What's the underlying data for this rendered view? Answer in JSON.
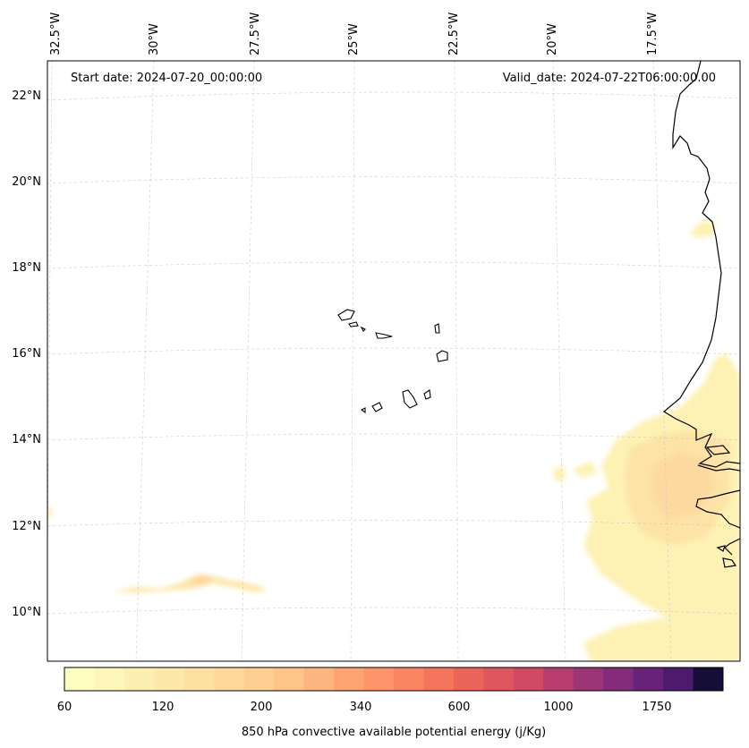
{
  "header": {
    "start_date": "Start date: 2024-07-20_00:00:00",
    "valid_date": "Valid_date: 2024-07-22T06:00:00.00"
  },
  "map": {
    "longitude_labels": [
      "32.5°W",
      "30°W",
      "27.5°W",
      "25°W",
      "22.5°W",
      "20°W",
      "17.5°W"
    ],
    "latitude_labels": [
      "22°N",
      "20°N",
      "18°N",
      "16°N",
      "14°N",
      "12°N",
      "10°N"
    ],
    "gridlines": true,
    "coastline_color": "#000000",
    "features": [
      "cape-verde-islands",
      "west-african-coastline"
    ]
  },
  "colorbar": {
    "label": "850 hPa convective available potential energy (j/Kg)",
    "tick_labels": [
      "60",
      "120",
      "200",
      "340",
      "600",
      "1000",
      "1750"
    ],
    "colors": [
      "#fcfdbf",
      "#fcf6b8",
      "#fcefb1",
      "#fde8aa",
      "#fde0a2",
      "#fed899",
      "#fecf91",
      "#fec488",
      "#feb47e",
      "#fea473",
      "#fe946a",
      "#fb8462",
      "#f5755c",
      "#ec6459",
      "#e0565e",
      "#d14a65",
      "#b73d6f",
      "#9b3576",
      "#822c7a",
      "#682378",
      "#4e1a6d",
      "#150e37"
    ]
  }
}
